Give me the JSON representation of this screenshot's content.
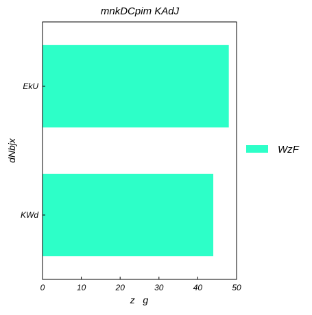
{
  "chart_data": {
    "type": "bar",
    "orientation": "horizontal",
    "title": "mnkDCpim KAdJ",
    "xlabel": "z   g",
    "ylabel": "dNbjx",
    "categories": [
      "EkU",
      "KWd"
    ],
    "series": [
      {
        "name": "WzF",
        "values": [
          48,
          44
        ],
        "color": "#2dffc8"
      }
    ],
    "xlim": [
      0,
      50
    ],
    "xticks": [
      "0",
      "10",
      "20",
      "30",
      "40",
      "50"
    ],
    "grid": false,
    "legend": "right"
  }
}
